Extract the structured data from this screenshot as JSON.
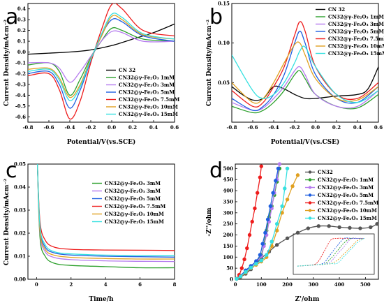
{
  "panels": {
    "a": {
      "letter": "a",
      "xlabel": "Potential/V(vs.SCE)",
      "ylabel": "Current Density/mAcm⁻²",
      "xticks": [
        "-0.8",
        "-0.6",
        "-0.4",
        "-0.2",
        "0.0",
        "0.2",
        "0.4",
        "0.6"
      ],
      "yticks": [
        "-0.6",
        "-0.5",
        "-0.4",
        "-0.3",
        "-0.2",
        "-0.1",
        "0.0",
        "0.1",
        "0.2",
        "0.3",
        "0.4"
      ]
    },
    "b": {
      "letter": "b",
      "xlabel": "Potential/V(vs.CSE)",
      "ylabel": "Current Density/mAcm⁻²",
      "xticks": [
        "-0.8",
        "-0.6",
        "-0.4",
        "-0.2",
        "0.0",
        "0.2",
        "0.4",
        "0.6"
      ],
      "yticks": [
        "0.05",
        "0.10",
        "0.15"
      ]
    },
    "c": {
      "letter": "c",
      "xlabel": "Time/h",
      "ylabel": "Current Density/mAcm⁻²",
      "xticks": [
        "0",
        "2",
        "4",
        "6",
        "8"
      ],
      "yticks": [
        "0.00",
        "0.01",
        "0.02",
        "0.03",
        "0.04",
        "0.05"
      ]
    },
    "d": {
      "letter": "d",
      "xlabel": "Z'/ohm",
      "ylabel": "-Z''/ohm",
      "xticks": [
        "0",
        "100",
        "200",
        "300",
        "400",
        "500"
      ],
      "yticks": [
        "0",
        "50",
        "100",
        "150",
        "200",
        "250",
        "300",
        "350",
        "400",
        "450",
        "500"
      ]
    }
  },
  "legend_labels": {
    "cn32": "CN 32",
    "cn32_plain": "CN32",
    "c1": "CN32@γ-Fe₂O₃ 1mM",
    "c3": "CN32@γ-Fe₂O₃ 3mM",
    "c5": "CN32@γ-Fe₂O₃ 5mM",
    "c75": "CN32@γ-Fe₂O₃ 7.5mM",
    "c10": "CN32@γ-Fe₂O₃ 10mM",
    "c15": "CN32@γ-Fe₂O₃ 15mM"
  },
  "colors": {
    "cn32": "#000000",
    "c1": "#2ca02c",
    "c3": "#b57bee",
    "c5": "#1f5fe0",
    "c75": "#ee1c1c",
    "c10": "#e0a020",
    "c15": "#35e0e0",
    "cn32_d": "#555555"
  },
  "chart_data": [
    {
      "type": "line",
      "panel": "a",
      "xlabel": "Potential/V(vs.SCE)",
      "ylabel": "Current Density/mAcm⁻²",
      "xlim": [
        -0.8,
        0.6
      ],
      "ylim": [
        -0.65,
        0.45
      ],
      "series": [
        {
          "name": "CN 32",
          "x": [
            -0.8,
            -0.6,
            -0.4,
            -0.2,
            0.0,
            0.2,
            0.4,
            0.6
          ],
          "y": [
            -0.02,
            -0.01,
            0.0,
            0.02,
            0.06,
            0.12,
            0.18,
            0.26
          ]
        },
        {
          "name": "CN32@γ-Fe₂O₃ 1mM",
          "x": [
            -0.8,
            -0.6,
            -0.5,
            -0.4,
            -0.3,
            -0.2,
            -0.1,
            0.0,
            0.1,
            0.3,
            0.6
          ],
          "y": [
            -0.12,
            -0.1,
            -0.18,
            -0.4,
            -0.25,
            -0.05,
            0.1,
            0.22,
            0.2,
            0.12,
            0.1
          ]
        },
        {
          "name": "CN32@γ-Fe₂O₃ 3mM",
          "x": [
            -0.8,
            -0.6,
            -0.5,
            -0.4,
            -0.3,
            -0.2,
            -0.1,
            0.0,
            0.1,
            0.3,
            0.6
          ],
          "y": [
            -0.1,
            -0.1,
            -0.15,
            -0.28,
            -0.18,
            -0.04,
            0.1,
            0.19,
            0.18,
            0.1,
            0.1
          ]
        },
        {
          "name": "CN32@γ-Fe₂O₃ 5mM",
          "x": [
            -0.8,
            -0.6,
            -0.5,
            -0.4,
            -0.3,
            -0.2,
            -0.1,
            0.0,
            0.1,
            0.3,
            0.6
          ],
          "y": [
            -0.2,
            -0.18,
            -0.3,
            -0.52,
            -0.35,
            -0.08,
            0.15,
            0.3,
            0.28,
            0.15,
            0.1
          ]
        },
        {
          "name": "CN32@γ-Fe₂O₃ 7.5mM",
          "x": [
            -0.8,
            -0.6,
            -0.5,
            -0.4,
            -0.3,
            -0.2,
            -0.1,
            0.0,
            0.1,
            0.3,
            0.6
          ],
          "y": [
            -0.22,
            -0.2,
            -0.35,
            -0.62,
            -0.45,
            -0.1,
            0.2,
            0.44,
            0.4,
            0.2,
            0.15
          ]
        },
        {
          "name": "CN32@γ-Fe₂O₃ 10mM",
          "x": [
            -0.8,
            -0.6,
            -0.5,
            -0.4,
            -0.3,
            -0.2,
            -0.1,
            0.0,
            0.1,
            0.3,
            0.6
          ],
          "y": [
            -0.16,
            -0.15,
            -0.24,
            -0.42,
            -0.3,
            -0.06,
            0.14,
            0.33,
            0.3,
            0.16,
            0.12
          ]
        },
        {
          "name": "CN32@γ-Fe₂O₃ 15mM",
          "x": [
            -0.8,
            -0.6,
            -0.5,
            -0.4,
            -0.3,
            -0.2,
            -0.1,
            0.0,
            0.1,
            0.3,
            0.6
          ],
          "y": [
            -0.18,
            -0.16,
            -0.26,
            -0.45,
            -0.32,
            -0.07,
            0.16,
            0.35,
            0.32,
            0.17,
            0.12
          ]
        }
      ]
    },
    {
      "type": "line",
      "panel": "b",
      "xlabel": "Potential/V(vs.CSE)",
      "ylabel": "Current Density/mAcm⁻²",
      "xlim": [
        -0.8,
        0.6
      ],
      "ylim": [
        0.0,
        0.15
      ],
      "series": [
        {
          "name": "CN 32",
          "x": [
            -0.8,
            -0.7,
            -0.6,
            -0.5,
            -0.4,
            -0.3,
            -0.2,
            -0.1,
            0.0,
            0.2,
            0.4,
            0.5,
            0.6
          ],
          "y": [
            0.045,
            0.035,
            0.028,
            0.03,
            0.045,
            0.042,
            0.035,
            0.03,
            0.03,
            0.033,
            0.035,
            0.042,
            0.07
          ]
        },
        {
          "name": "CN32@γ-Fe₂O₃ 1mM",
          "x": [
            -0.8,
            -0.6,
            -0.5,
            -0.4,
            -0.3,
            -0.2,
            -0.15,
            -0.1,
            0.0,
            0.2,
            0.4,
            0.6
          ],
          "y": [
            0.02,
            0.012,
            0.015,
            0.025,
            0.04,
            0.06,
            0.065,
            0.055,
            0.035,
            0.02,
            0.018,
            0.035
          ]
        },
        {
          "name": "CN32@γ-Fe₂O₃ 3mM",
          "x": [
            -0.8,
            -0.6,
            -0.5,
            -0.4,
            -0.3,
            -0.2,
            -0.15,
            -0.1,
            0.0,
            0.2,
            0.4,
            0.6
          ],
          "y": [
            0.025,
            0.015,
            0.018,
            0.03,
            0.045,
            0.065,
            0.07,
            0.06,
            0.035,
            0.02,
            0.02,
            0.04
          ]
        },
        {
          "name": "CN32@γ-Fe₂O₃ 5mM",
          "x": [
            -0.8,
            -0.6,
            -0.5,
            -0.4,
            -0.3,
            -0.2,
            -0.15,
            -0.1,
            0.0,
            0.2,
            0.4,
            0.6
          ],
          "y": [
            0.03,
            0.015,
            0.02,
            0.035,
            0.06,
            0.1,
            0.115,
            0.1,
            0.06,
            0.03,
            0.025,
            0.045
          ]
        },
        {
          "name": "CN32@γ-Fe₂O₃ 7.5mM",
          "x": [
            -0.8,
            -0.6,
            -0.5,
            -0.4,
            -0.3,
            -0.2,
            -0.15,
            -0.1,
            0.0,
            0.2,
            0.4,
            0.6
          ],
          "y": [
            0.04,
            0.02,
            0.025,
            0.045,
            0.07,
            0.11,
            0.127,
            0.115,
            0.07,
            0.035,
            0.03,
            0.05
          ]
        },
        {
          "name": "CN32@γ-Fe₂O₃ 10mM",
          "x": [
            -0.8,
            -0.6,
            -0.5,
            -0.4,
            -0.3,
            -0.2,
            -0.15,
            -0.1,
            0.0,
            0.2,
            0.4,
            0.6
          ],
          "y": [
            0.05,
            0.025,
            0.03,
            0.05,
            0.075,
            0.098,
            0.1,
            0.085,
            0.055,
            0.03,
            0.028,
            0.045
          ]
        },
        {
          "name": "CN32@γ-Fe₂O₃ 15mM",
          "x": [
            -0.8,
            -0.6,
            -0.5,
            -0.4,
            -0.3,
            -0.2,
            -0.15,
            -0.1,
            0.0,
            0.2,
            0.4,
            0.6
          ],
          "y": [
            0.085,
            0.04,
            0.03,
            0.035,
            0.05,
            0.075,
            0.09,
            0.095,
            0.07,
            0.035,
            0.025,
            0.04
          ]
        }
      ]
    },
    {
      "type": "line",
      "panel": "c",
      "xlabel": "Time/h",
      "ylabel": "Current Density/mAcm⁻²",
      "xlim": [
        -0.5,
        8
      ],
      "ylim": [
        0.0,
        0.05
      ],
      "series": [
        {
          "name": "CN32@γ-Fe₂O₃ 3mM",
          "x": [
            0.05,
            0.2,
            0.5,
            1,
            2,
            4,
            6,
            8
          ],
          "y": [
            0.05,
            0.018,
            0.01,
            0.007,
            0.006,
            0.0055,
            0.005,
            0.005
          ]
        },
        {
          "name": "CN32@γ-Fe₂O₃ 1mM",
          "x": [
            0.05,
            0.2,
            0.5,
            1,
            2,
            4,
            6,
            8
          ],
          "y": [
            0.05,
            0.02,
            0.012,
            0.0095,
            0.0085,
            0.008,
            0.0078,
            0.0077
          ]
        },
        {
          "name": "CN32@γ-Fe₂O₃ 5mM",
          "x": [
            0.05,
            0.2,
            0.5,
            1,
            2,
            4,
            6,
            8
          ],
          "y": [
            0.05,
            0.022,
            0.014,
            0.0115,
            0.0105,
            0.01,
            0.0098,
            0.0096
          ]
        },
        {
          "name": "CN32@γ-Fe₂O₃ 7.5mM",
          "x": [
            0.05,
            0.2,
            0.5,
            1,
            2,
            4,
            6,
            8
          ],
          "y": [
            0.05,
            0.025,
            0.017,
            0.014,
            0.013,
            0.0127,
            0.0126,
            0.0125
          ]
        },
        {
          "name": "CN32@γ-Fe₂O₃ 10mM",
          "x": [
            0.05,
            0.2,
            0.5,
            1,
            2,
            4,
            6,
            8
          ],
          "y": [
            0.05,
            0.021,
            0.013,
            0.0105,
            0.0095,
            0.009,
            0.0088,
            0.0088
          ]
        },
        {
          "name": "CN32@γ-Fe₂O₃ 15mM",
          "x": [
            0.05,
            0.2,
            0.5,
            1,
            2,
            4,
            6,
            8
          ],
          "y": [
            0.05,
            0.023,
            0.015,
            0.012,
            0.011,
            0.0105,
            0.0103,
            0.0102
          ]
        }
      ]
    },
    {
      "type": "scatter",
      "panel": "d",
      "xlabel": "Z'/ohm",
      "ylabel": "-Z''/ohm",
      "xlim": [
        0,
        550
      ],
      "ylim": [
        0,
        520
      ],
      "series": [
        {
          "name": "CN32",
          "x": [
            5,
            20,
            40,
            60,
            80,
            100,
            130,
            160,
            200,
            240,
            280,
            320,
            360,
            400,
            440,
            480,
            520,
            545
          ],
          "y": [
            2,
            10,
            25,
            45,
            70,
            95,
            125,
            155,
            185,
            210,
            230,
            240,
            240,
            235,
            232,
            230,
            235,
            250
          ]
        },
        {
          "name": "CN32@γ-Fe₂O₃ 1mM",
          "x": [
            5,
            20,
            40,
            60,
            80,
            100,
            110,
            120,
            130,
            140,
            150,
            160,
            170
          ],
          "y": [
            2,
            15,
            40,
            60,
            80,
            110,
            160,
            220,
            280,
            330,
            380,
            440,
            500
          ]
        },
        {
          "name": "CN32@γ-Fe₂O₃ 3mM",
          "x": [
            5,
            20,
            40,
            60,
            80,
            100,
            110,
            120,
            130,
            140,
            150,
            160,
            170
          ],
          "y": [
            2,
            14,
            38,
            58,
            78,
            105,
            150,
            200,
            260,
            320,
            390,
            450,
            520
          ]
        },
        {
          "name": "CN32@γ-Fe₂O₃ 5mM",
          "x": [
            5,
            20,
            40,
            60,
            80,
            95,
            105,
            115,
            125,
            135,
            145,
            155,
            165
          ],
          "y": [
            2,
            16,
            40,
            60,
            82,
            110,
            160,
            210,
            270,
            330,
            390,
            445,
            500
          ]
        },
        {
          "name": "CN32@γ-Fe₂O₃ 7.5mM",
          "x": [
            5,
            15,
            25,
            35,
            45,
            55,
            65,
            75,
            85,
            95,
            100
          ],
          "y": [
            2,
            20,
            50,
            90,
            140,
            200,
            260,
            320,
            390,
            460,
            510
          ]
        },
        {
          "name": "CN32@γ-Fe₂O₃ 10mM",
          "x": [
            5,
            20,
            40,
            60,
            80,
            100,
            120,
            140,
            160,
            180,
            200,
            220,
            240
          ],
          "y": [
            2,
            12,
            30,
            50,
            65,
            80,
            100,
            150,
            220,
            300,
            360,
            420,
            470
          ]
        },
        {
          "name": "CN32@γ-Fe₂O₃ 15mM",
          "x": [
            5,
            20,
            40,
            60,
            80,
            100,
            120,
            140,
            160,
            180,
            190,
            200
          ],
          "y": [
            2,
            13,
            33,
            52,
            70,
            85,
            110,
            170,
            250,
            330,
            410,
            500
          ]
        }
      ]
    }
  ]
}
